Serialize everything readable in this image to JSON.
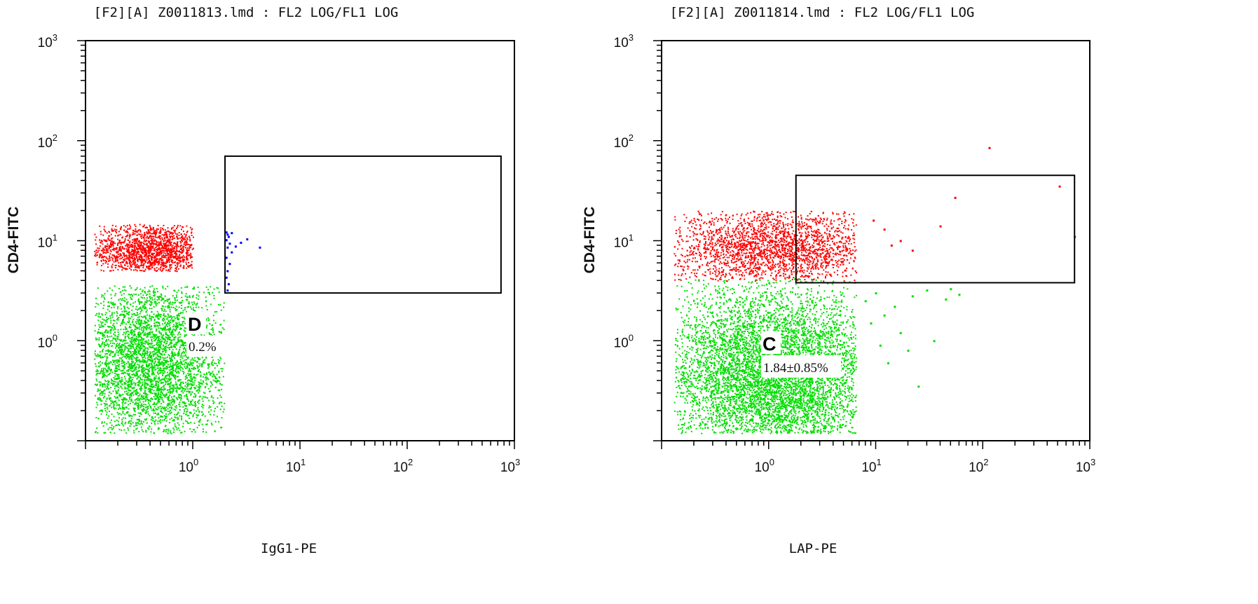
{
  "chart_data": [
    {
      "type": "scatter",
      "title": "[F2][A] Z0011813.lmd : FL2 LOG/FL1 LOG",
      "xlabel": "IgG1-PE",
      "ylabel": "CD4-FITC",
      "xscale": "log",
      "yscale": "log",
      "xlim": [
        0.1,
        1000
      ],
      "ylim": [
        0.1,
        1000
      ],
      "x_ticks": [
        "10^0",
        "10^1",
        "10^2",
        "10^3"
      ],
      "y_ticks": [
        "10^0",
        "10^1",
        "10^2",
        "10^3"
      ],
      "gate": {
        "x": [
          2,
          750
        ],
        "y": [
          3,
          70
        ]
      },
      "quadrant_label": "D",
      "percentage_label": "0.2%",
      "colors": {
        "high": "#ff0000",
        "low": "#00dd00",
        "gated": "#0000ff"
      },
      "series": [
        {
          "color": "#ff0000",
          "clusters": [
            {
              "count": 1500,
              "x_range": [
                0.12,
                1.0
              ],
              "y_range": [
                5,
                15
              ],
              "x_center": 0.4,
              "y_center": 8.0
            }
          ]
        },
        {
          "color": "#00dd00",
          "clusters": [
            {
              "count": 3800,
              "x_range": [
                0.12,
                1.95
              ],
              "y_range": [
                0.12,
                3.6
              ],
              "x_center": 0.4,
              "y_center": 0.6
            }
          ]
        },
        {
          "color": "#0000ff",
          "points": [
            [
              2.05,
              12.2
            ],
            [
              2.1,
              11.6
            ],
            [
              2.15,
              11.0
            ],
            [
              2.05,
              10.2
            ],
            [
              2.2,
              9.4
            ],
            [
              2.1,
              8.6
            ],
            [
              2.3,
              7.7
            ],
            [
              2.05,
              6.8
            ],
            [
              2.2,
              5.9
            ],
            [
              2.1,
              5.0
            ],
            [
              2.05,
              4.3
            ],
            [
              2.15,
              3.7
            ],
            [
              2.1,
              3.2
            ],
            [
              2.3,
              12.0
            ],
            [
              2.5,
              8.8
            ],
            [
              2.8,
              9.6
            ],
            [
              3.2,
              10.4
            ],
            [
              4.2,
              8.6
            ]
          ]
        }
      ]
    },
    {
      "type": "scatter",
      "title": "[F2][A] Z0011814.lmd : FL2 LOG/FL1 LOG",
      "xlabel": "LAP-PE",
      "ylabel": "CD4-FITC",
      "xscale": "log",
      "yscale": "log",
      "xlim": [
        0.1,
        1000
      ],
      "ylim": [
        0.1,
        1000
      ],
      "x_ticks": [
        "10^0",
        "10^1",
        "10^2",
        "10^3"
      ],
      "y_ticks": [
        "10^0",
        "10^1",
        "10^2",
        "10^3"
      ],
      "gate": {
        "x": [
          1.8,
          720
        ],
        "y": [
          3.8,
          45
        ]
      },
      "quadrant_label": "C",
      "percentage_label": "1.84±0.85%",
      "colors": {
        "high": "#ff0000",
        "low": "#00dd00"
      },
      "series": [
        {
          "color": "#ff0000",
          "clusters": [
            {
              "count": 2200,
              "x_range": [
                0.13,
                6.5
              ],
              "y_range": [
                4,
                20
              ],
              "x_center": 1.2,
              "y_center": 8.5
            }
          ],
          "points": [
            [
              9.5,
              16
            ],
            [
              12,
              13
            ],
            [
              14,
              9
            ],
            [
              17,
              10
            ],
            [
              22,
              8
            ],
            [
              40,
              14
            ],
            [
              55,
              27
            ],
            [
              115,
              85
            ],
            [
              520,
              35
            ],
            [
              720,
              11
            ]
          ]
        },
        {
          "color": "#00dd00",
          "clusters": [
            {
              "count": 5800,
              "x_range": [
                0.13,
                6.5
              ],
              "y_range": [
                0.12,
                4.2
              ],
              "x_center": 1.1,
              "y_center": 0.45
            }
          ],
          "points": [
            [
              8,
              2.5
            ],
            [
              9,
              1.5
            ],
            [
              10,
              3.0
            ],
            [
              11,
              0.9
            ],
            [
              12,
              1.8
            ],
            [
              13,
              0.6
            ],
            [
              15,
              2.2
            ],
            [
              17,
              1.2
            ],
            [
              20,
              0.8
            ],
            [
              22,
              2.8
            ],
            [
              25,
              0.35
            ],
            [
              30,
              3.2
            ],
            [
              35,
              1.0
            ],
            [
              45,
              2.6
            ],
            [
              50,
              3.3
            ],
            [
              60,
              2.9
            ]
          ]
        }
      ]
    }
  ]
}
